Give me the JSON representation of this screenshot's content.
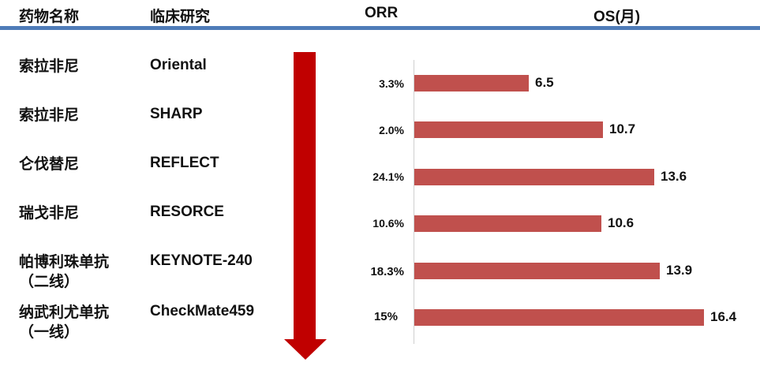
{
  "headers": {
    "drug": "药物名称",
    "trial": "临床研究",
    "orr": "ORR",
    "os": "OS(月)"
  },
  "colors": {
    "rule": "#4f7cb8",
    "bar": "#c0504d",
    "arrow": "#c00000"
  },
  "chart_data": {
    "type": "bar",
    "orientation": "horizontal",
    "categories": [
      "Oriental",
      "SHARP",
      "REFLECT",
      "RESORCE",
      "KEYNOTE-240",
      "CheckMate459"
    ],
    "drugs": [
      "索拉非尼",
      "索拉非尼",
      "仑伐替尼",
      "瑞戈非尼",
      "帕博利珠单抗（二线）",
      "纳武利尤单抗（一线）"
    ],
    "orr": [
      "3.3%",
      "2.0%",
      "24.1%",
      "10.6%",
      "18.3%",
      "15%"
    ],
    "series": [
      {
        "values": [
          6.5,
          10.7,
          13.6,
          10.6,
          13.9,
          16.4
        ]
      }
    ],
    "xlim": [
      0,
      16.4
    ]
  },
  "rows": [
    {
      "drug": "索拉非尼",
      "trial": "Oriental",
      "orr": "3.3%",
      "os": "6.5"
    },
    {
      "drug": "索拉非尼",
      "trial": "SHARP",
      "orr": "2.0%",
      "os": "10.7"
    },
    {
      "drug": "仑伐替尼",
      "trial": "REFLECT",
      "orr": "24.1%",
      "os": "13.6"
    },
    {
      "drug": "瑞戈非尼",
      "trial": "RESORCE",
      "orr": "10.6%",
      "os": "10.6"
    },
    {
      "drug": "帕博利珠单抗",
      "drug2": "（二线）",
      "trial": "KEYNOTE-240",
      "orr": "18.3%",
      "os": "13.9"
    },
    {
      "drug": "纳武利尤单抗",
      "drug2": "（一线）",
      "trial": "CheckMate459",
      "orr": "15%",
      "os": "16.4"
    }
  ]
}
